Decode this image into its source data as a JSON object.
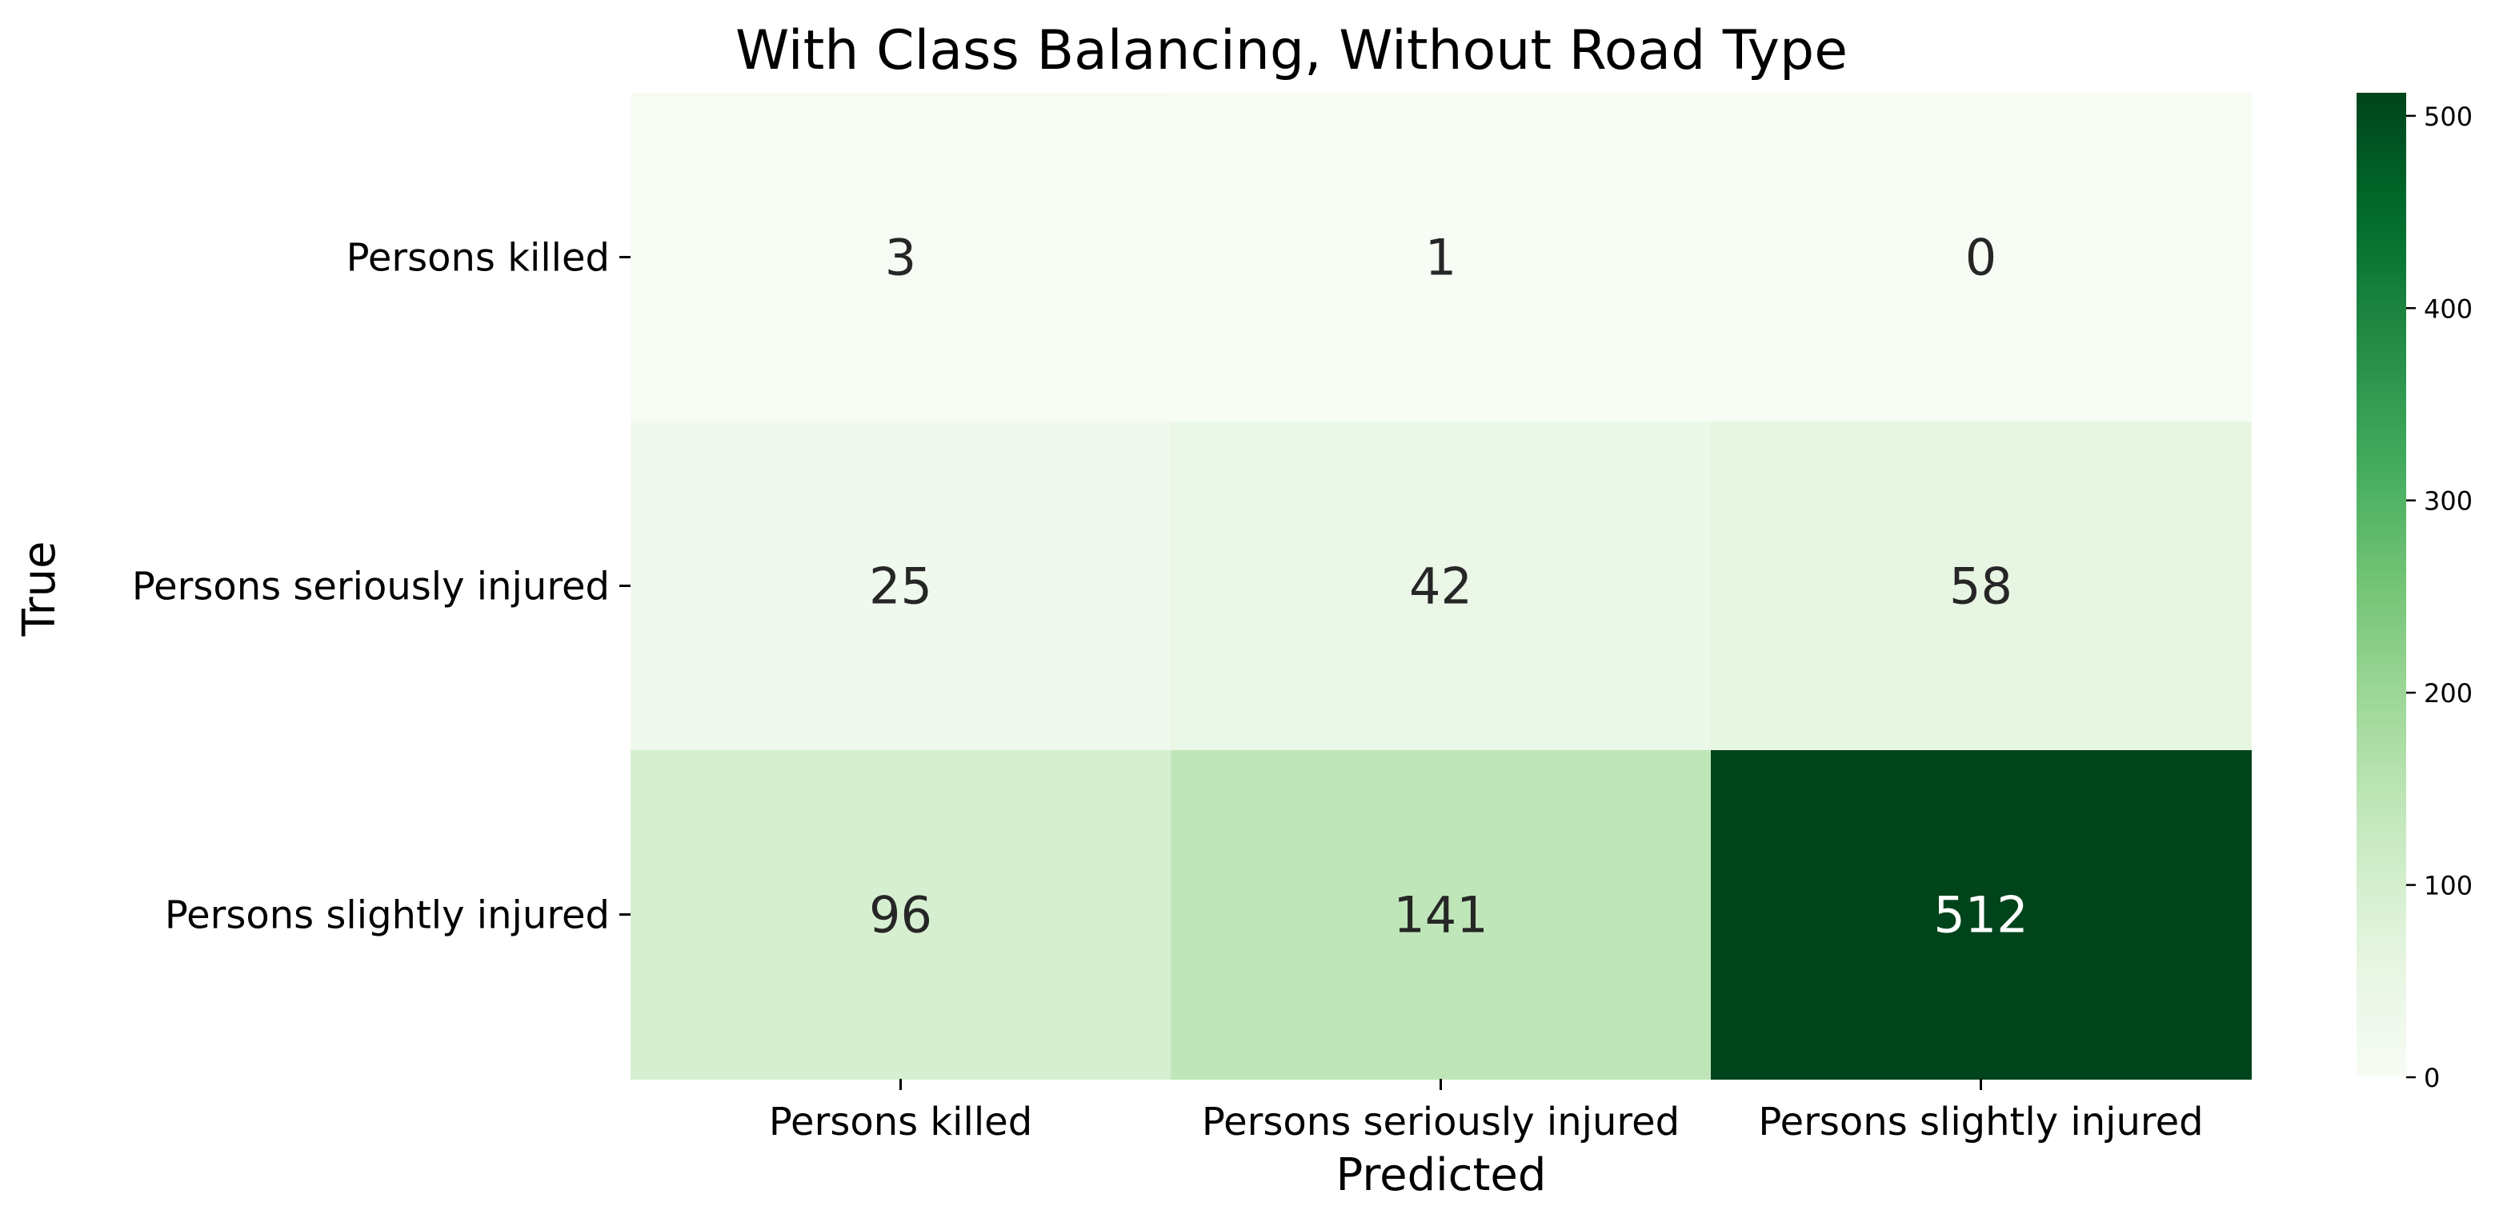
{
  "chart_data": {
    "type": "heatmap",
    "title": "With Class Balancing, Without Road Type",
    "xlabel": "Predicted",
    "ylabel": "True",
    "x_categories": [
      "Persons killed",
      "Persons seriously injured",
      "Persons slightly injured"
    ],
    "y_categories": [
      "Persons killed",
      "Persons seriously injured",
      "Persons slightly injured"
    ],
    "values": [
      [
        3,
        1,
        0
      ],
      [
        25,
        42,
        58
      ],
      [
        96,
        141,
        512
      ]
    ],
    "colormap": "Greens",
    "colorbar": {
      "min": 0,
      "max": 512,
      "ticks": [
        0,
        100,
        200,
        300,
        400,
        500
      ]
    },
    "grid": false
  }
}
